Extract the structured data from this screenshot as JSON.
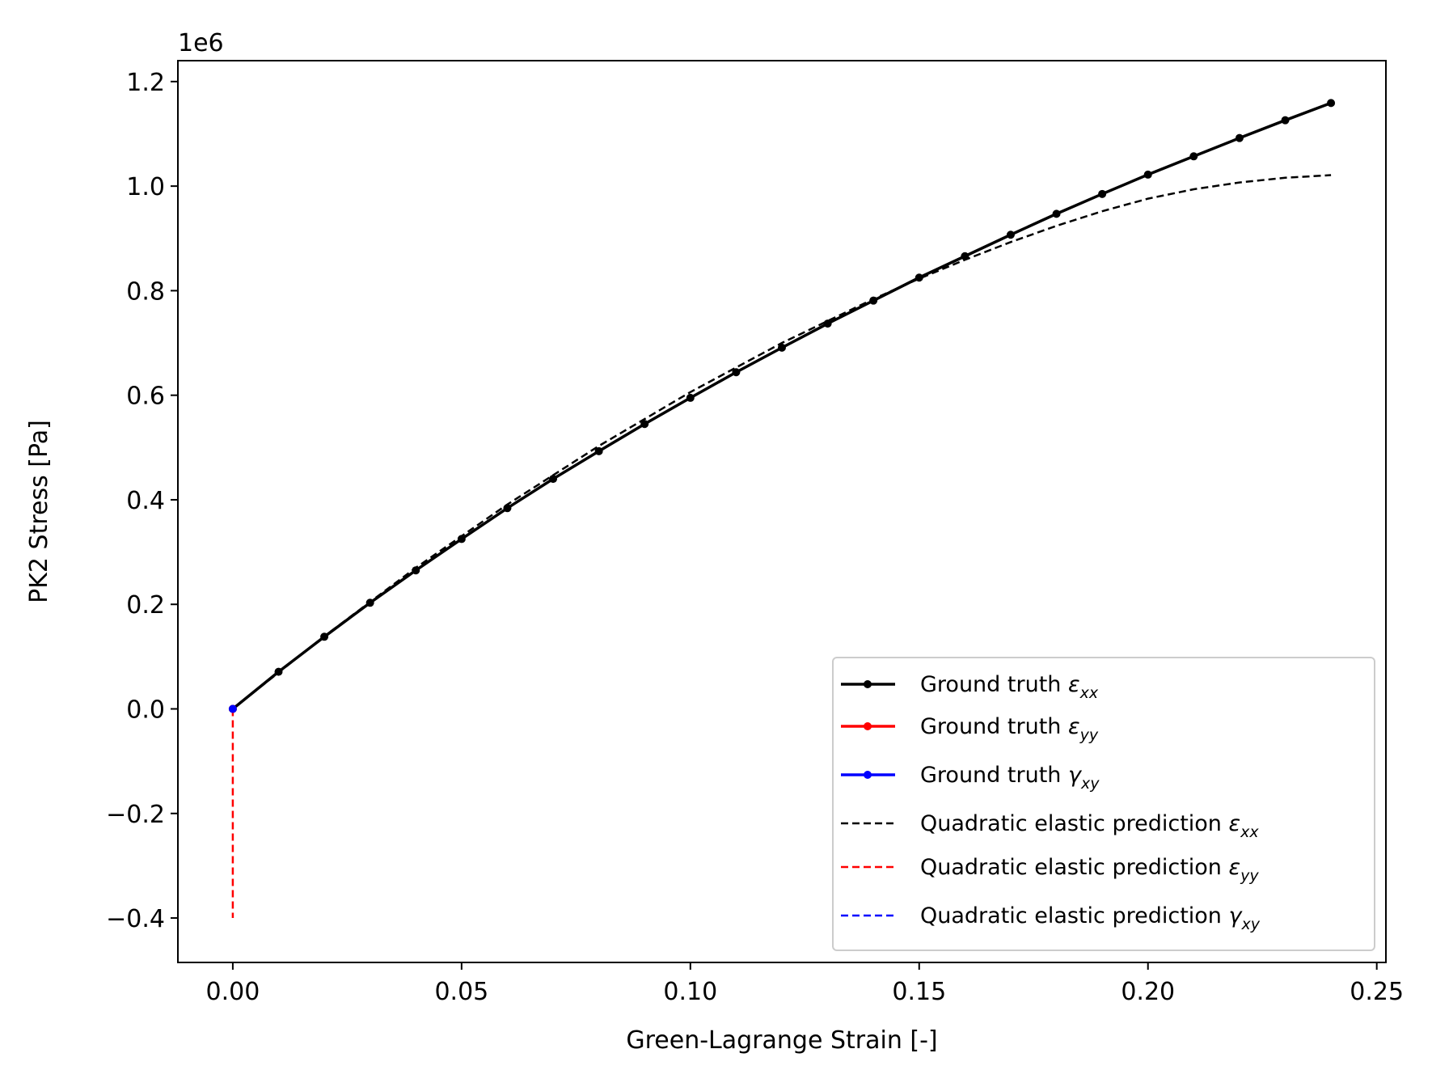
{
  "chart_data": {
    "type": "line",
    "xlabel": "Green-Lagrange Strain [-]",
    "ylabel": "PK2 Stress [Pa]",
    "y_offset_label": "1e6",
    "xlim": [
      -0.012,
      0.252
    ],
    "ylim": [
      -0.485,
      1.24
    ],
    "y_scale": 1000000,
    "x_ticks": [
      0.0,
      0.05,
      0.1,
      0.15,
      0.2,
      0.25
    ],
    "x_tick_labels": [
      "0.00",
      "0.05",
      "0.10",
      "0.15",
      "0.20",
      "0.25"
    ],
    "y_ticks": [
      -0.4,
      -0.2,
      0.0,
      0.2,
      0.4,
      0.6,
      0.8,
      1.0,
      1.2
    ],
    "y_tick_labels": [
      "−0.4",
      "−0.2",
      "0.0",
      "0.2",
      "0.4",
      "0.6",
      "0.8",
      "1.0",
      "1.2"
    ],
    "grid": false,
    "legend_position": "lower-right",
    "series": [
      {
        "name": "Ground truth",
        "sub": "xx",
        "sym": "ε",
        "color": "#000000",
        "style": "solid-marker",
        "x": [
          0.0,
          0.01,
          0.02,
          0.03,
          0.04,
          0.05,
          0.06,
          0.07,
          0.08,
          0.09,
          0.1,
          0.11,
          0.12,
          0.13,
          0.14,
          0.15,
          0.16,
          0.17,
          0.18,
          0.19,
          0.2,
          0.21,
          0.22,
          0.23,
          0.24
        ],
        "y": [
          0.0,
          0.071,
          0.138,
          0.203,
          0.265,
          0.325,
          0.384,
          0.44,
          0.493,
          0.545,
          0.595,
          0.644,
          0.691,
          0.737,
          0.781,
          0.825,
          0.866,
          0.907,
          0.947,
          0.985,
          1.022,
          1.057,
          1.092,
          1.126,
          1.159
        ]
      },
      {
        "name": "Ground truth",
        "sub": "yy",
        "sym": "ε",
        "color": "#ff0000",
        "style": "solid-marker",
        "x": [
          0.0
        ],
        "y": [
          0.0
        ]
      },
      {
        "name": "Ground truth",
        "sub": "xy",
        "sym": "γ",
        "color": "#0000ff",
        "style": "solid-marker",
        "x": [
          0.0
        ],
        "y": [
          0.0
        ]
      },
      {
        "name": "Quadratic elastic prediction",
        "sub": "xx",
        "sym": "ε",
        "color": "#000000",
        "style": "dashed",
        "x": [
          0.0,
          0.02,
          0.04,
          0.06,
          0.08,
          0.1,
          0.12,
          0.14,
          0.15,
          0.16,
          0.17,
          0.18,
          0.19,
          0.2,
          0.21,
          0.22,
          0.23,
          0.24
        ],
        "y": [
          0.0,
          0.139,
          0.27,
          0.391,
          0.503,
          0.606,
          0.7,
          0.784,
          0.823,
          0.859,
          0.893,
          0.924,
          0.952,
          0.976,
          0.994,
          1.007,
          1.016,
          1.021
        ]
      },
      {
        "name": "Quadratic elastic prediction",
        "sub": "yy",
        "sym": "ε",
        "color": "#ff0000",
        "style": "dashed",
        "x": [
          0.0,
          0.0
        ],
        "y": [
          0.0,
          -0.4
        ]
      },
      {
        "name": "Quadratic elastic prediction",
        "sub": "xy",
        "sym": "γ",
        "color": "#0000ff",
        "style": "dashed",
        "x": [
          0.0,
          0.0
        ],
        "y": [
          0.0,
          0.0
        ]
      }
    ]
  }
}
